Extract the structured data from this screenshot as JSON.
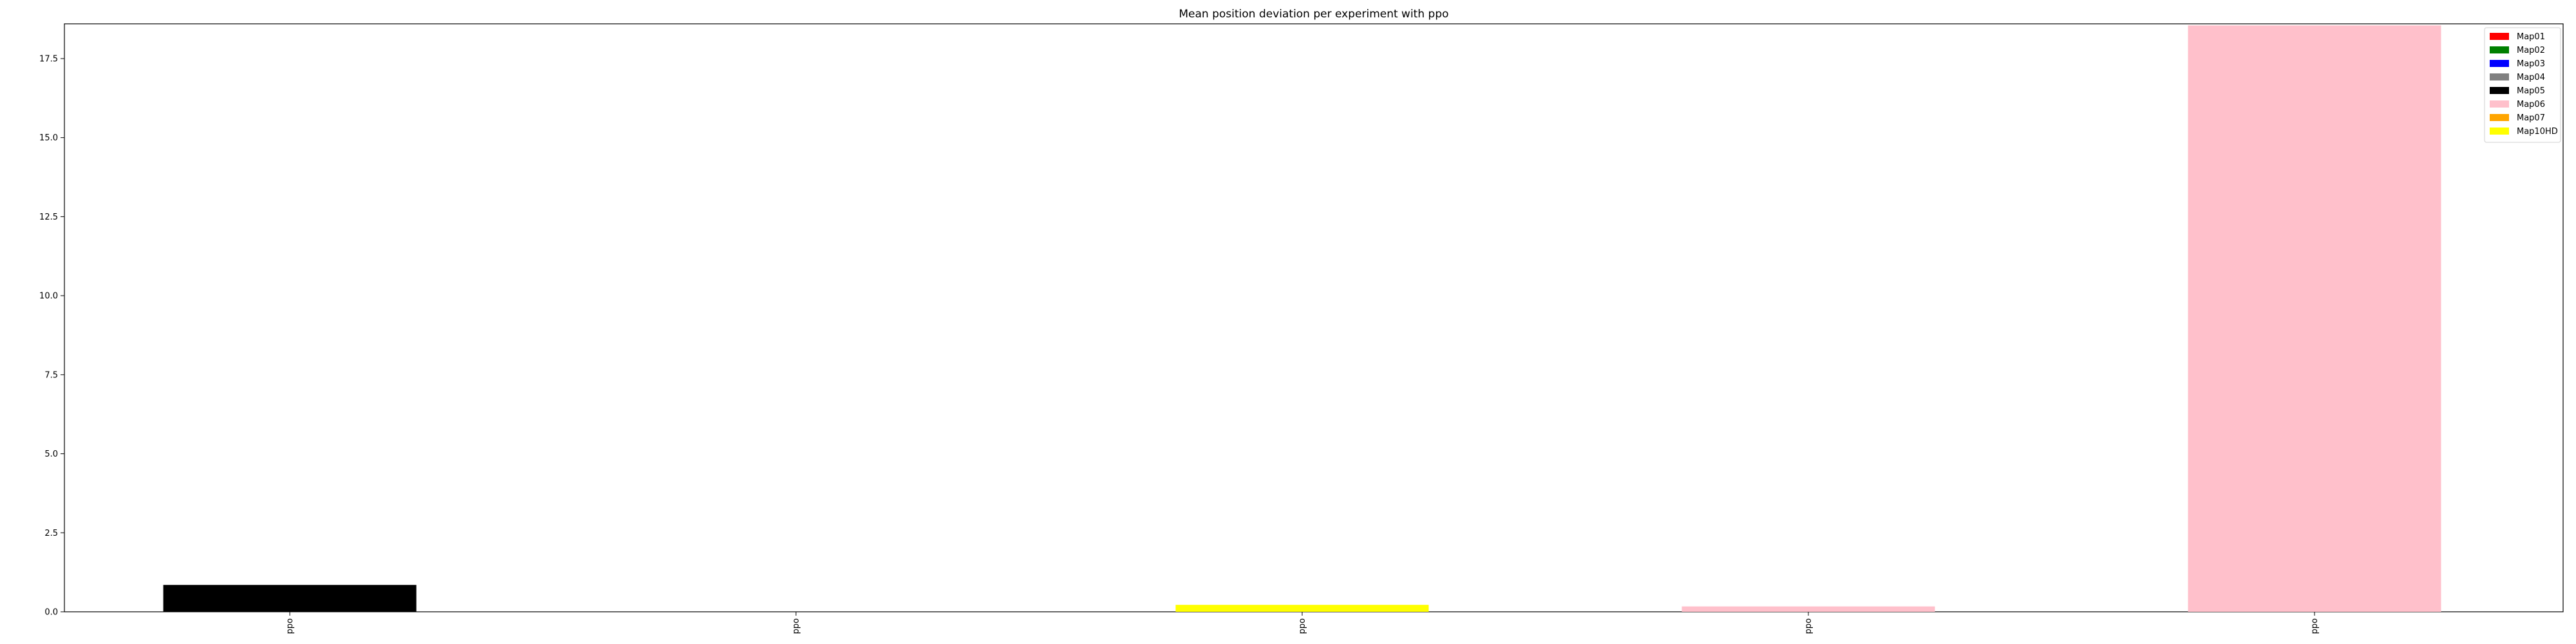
{
  "chart_data": {
    "type": "bar",
    "title": "Mean position deviation per experiment with ppo",
    "xlabel": "",
    "ylabel": "",
    "categories": [
      "ppo",
      "ppo",
      "ppo",
      "ppo",
      "ppo"
    ],
    "ylim": [
      0,
      18.6
    ],
    "yticks": [
      0.0,
      2.5,
      5.0,
      7.5,
      10.0,
      12.5,
      15.0,
      17.5
    ],
    "ytick_labels": [
      "0.0",
      "2.5",
      "5.0",
      "7.5",
      "10.0",
      "12.5",
      "15.0",
      "17.5"
    ],
    "grid": false,
    "legend_position": "top-right",
    "series": [
      {
        "name": "Map01",
        "color": "#ff0000",
        "values": [
          0,
          0,
          0,
          0,
          0
        ]
      },
      {
        "name": "Map02",
        "color": "#008000",
        "values": [
          0,
          0,
          0,
          0,
          0
        ]
      },
      {
        "name": "Map03",
        "color": "#0000ff",
        "values": [
          0,
          0,
          0,
          0,
          0
        ]
      },
      {
        "name": "Map04",
        "color": "#808080",
        "values": [
          0,
          0,
          0,
          0,
          0
        ]
      },
      {
        "name": "Map05",
        "color": "#000000",
        "values": [
          0.85,
          0,
          0,
          0,
          0
        ]
      },
      {
        "name": "Map06",
        "color": "#ffc0cb",
        "values": [
          0,
          0,
          0,
          0.17,
          18.55
        ]
      },
      {
        "name": "Map07",
        "color": "#ffa500",
        "values": [
          0,
          0,
          0,
          0,
          0
        ]
      },
      {
        "name": "Map10HD",
        "color": "#ffff00",
        "values": [
          0,
          0,
          0.22,
          0,
          0
        ]
      }
    ],
    "bar_colors": [
      "#000000",
      "#000000",
      "#ffff00",
      "#ffc0cb",
      "#ffc0cb"
    ],
    "bar_values": [
      0.85,
      0,
      0.22,
      0.17,
      18.55
    ]
  }
}
